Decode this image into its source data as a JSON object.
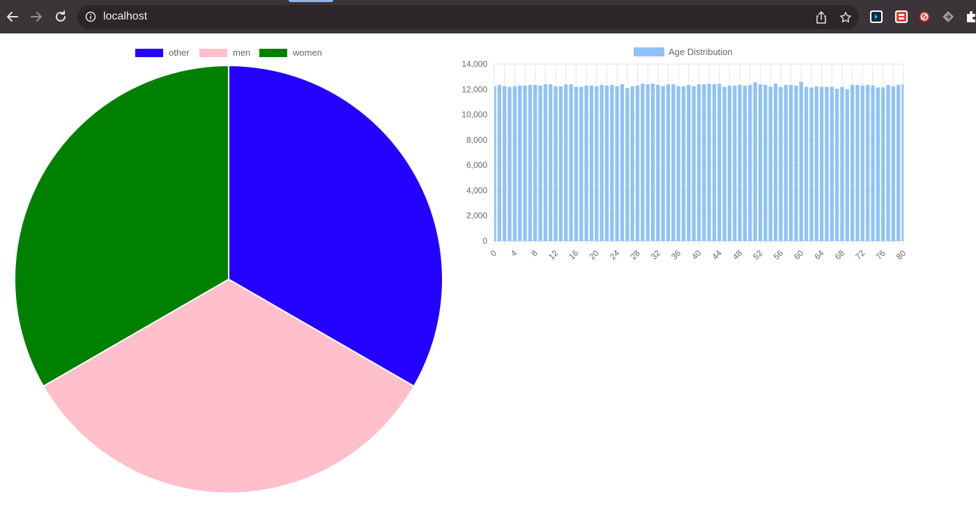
{
  "browser": {
    "url": "localhost",
    "colors": {
      "chrome_bg": "#3b3438",
      "omnibox_bg": "#2c262a"
    },
    "icons": [
      "back-arrow-icon",
      "forward-arrow-icon",
      "reload-icon",
      "info-icon",
      "share-icon",
      "star-icon",
      "extension-icon",
      "puzzle-icon"
    ]
  },
  "pie": {
    "legend": [
      {
        "label": "other",
        "color": "#2400ff"
      },
      {
        "label": "men",
        "color": "#ffbfcb"
      },
      {
        "label": "women",
        "color": "#008000"
      }
    ]
  },
  "chart_data": [
    {
      "type": "pie",
      "labels": [
        "other",
        "men",
        "women"
      ],
      "values": [
        1,
        1,
        1
      ],
      "colors": [
        "#2400ff",
        "#ffbfcb",
        "#008000"
      ],
      "legend": "top"
    },
    {
      "type": "bar",
      "series": [
        {
          "name": "Age Distribution",
          "color": "#8fc2f8"
        }
      ],
      "x": [
        0,
        1,
        2,
        3,
        4,
        5,
        6,
        7,
        8,
        9,
        10,
        11,
        12,
        13,
        14,
        15,
        16,
        17,
        18,
        19,
        20,
        21,
        22,
        23,
        24,
        25,
        26,
        27,
        28,
        29,
        30,
        31,
        32,
        33,
        34,
        35,
        36,
        37,
        38,
        39,
        40,
        41,
        42,
        43,
        44,
        45,
        46,
        47,
        48,
        49,
        50,
        51,
        52,
        53,
        54,
        55,
        56,
        57,
        58,
        59,
        60,
        61,
        62,
        63,
        64,
        65,
        66,
        67,
        68,
        69,
        70,
        71,
        72,
        73,
        74,
        75,
        76,
        77,
        78,
        79,
        80
      ],
      "values": [
        12250,
        12350,
        12250,
        12200,
        12250,
        12300,
        12300,
        12350,
        12350,
        12300,
        12400,
        12400,
        12250,
        12250,
        12400,
        12400,
        12200,
        12200,
        12300,
        12300,
        12250,
        12350,
        12300,
        12350,
        12250,
        12400,
        12100,
        12250,
        12300,
        12450,
        12400,
        12450,
        12350,
        12250,
        12400,
        12400,
        12250,
        12250,
        12350,
        12250,
        12400,
        12400,
        12450,
        12400,
        12450,
        12200,
        12300,
        12300,
        12350,
        12300,
        12350,
        12550,
        12400,
        12350,
        12200,
        12450,
        12200,
        12350,
        12350,
        12300,
        12600,
        12200,
        12150,
        12250,
        12200,
        12200,
        12200,
        12050,
        12200,
        12000,
        12350,
        12350,
        12300,
        12350,
        12300,
        12150,
        12150,
        12350,
        12250,
        12350,
        12400
      ],
      "xticks": [
        "0",
        "4",
        "8",
        "12",
        "16",
        "20",
        "24",
        "28",
        "32",
        "36",
        "40",
        "44",
        "48",
        "52",
        "56",
        "60",
        "64",
        "68",
        "72",
        "76",
        "80"
      ],
      "yticks": [
        "0",
        "2,000",
        "4,000",
        "6,000",
        "8,000",
        "10,000",
        "12,000",
        "14,000"
      ],
      "ylim": [
        0,
        14000
      ],
      "grid": true,
      "legend": "top"
    }
  ]
}
